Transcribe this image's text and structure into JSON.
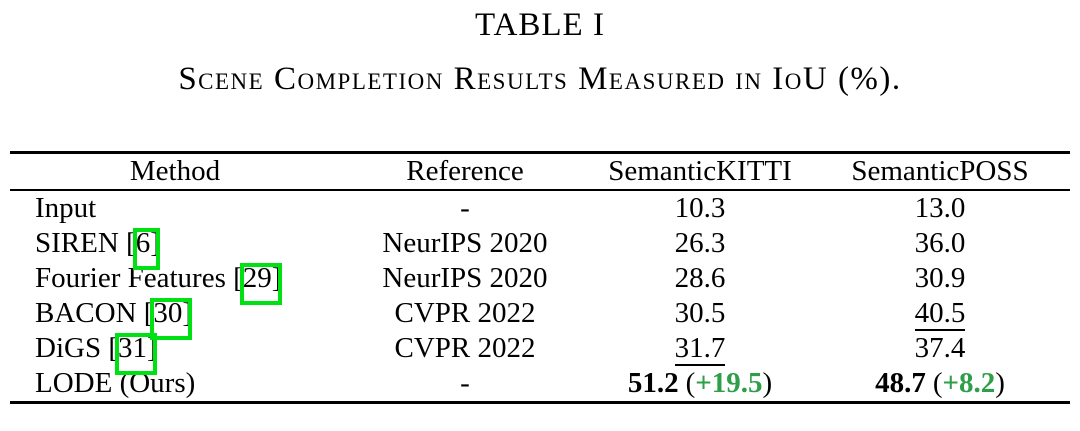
{
  "caption": {
    "number": "TABLE I",
    "title": "Scene Completion Results Measured in IoU (%)."
  },
  "colors": {
    "citation_box_green": "#00e114",
    "delta_green": "#2f9e48",
    "text": "#000000",
    "background": "#ffffff"
  },
  "table": {
    "headers": [
      "Method",
      "Reference",
      "SemanticKITTI",
      "SemanticPOSS"
    ],
    "delta_open": "(",
    "delta_close": ")",
    "rows": [
      {
        "method_prefix": "Input",
        "cite": "",
        "method_suffix": "",
        "reference": "-",
        "kitti": {
          "value": "10.3"
        },
        "poss": {
          "value": "13.0"
        }
      },
      {
        "method_prefix": "SIREN [",
        "cite": "6",
        "method_suffix": "]",
        "reference": "NeurIPS 2020",
        "kitti": {
          "value": "26.3"
        },
        "poss": {
          "value": "36.0"
        }
      },
      {
        "method_prefix": "Fourier Features [",
        "cite": "29",
        "method_suffix": "]",
        "reference": "NeurIPS 2020",
        "kitti": {
          "value": "28.6"
        },
        "poss": {
          "value": "30.9"
        }
      },
      {
        "method_prefix": "BACON [",
        "cite": "30",
        "method_suffix": "]",
        "reference": "CVPR 2022",
        "kitti": {
          "value": "30.5"
        },
        "poss": {
          "value": "40.5",
          "underline": true
        }
      },
      {
        "method_prefix": "DiGS [",
        "cite": "31",
        "method_suffix": "]",
        "reference": "CVPR 2022",
        "kitti": {
          "value": "31.7",
          "underline": true
        },
        "poss": {
          "value": "37.4"
        }
      },
      {
        "method_prefix": "LODE (Ours)",
        "cite": "",
        "method_suffix": "",
        "reference": "-",
        "kitti": {
          "value": "51.2",
          "bold": true,
          "delta": "+19.5"
        },
        "poss": {
          "value": "48.7",
          "bold": true,
          "delta": "+8.2"
        }
      }
    ]
  }
}
